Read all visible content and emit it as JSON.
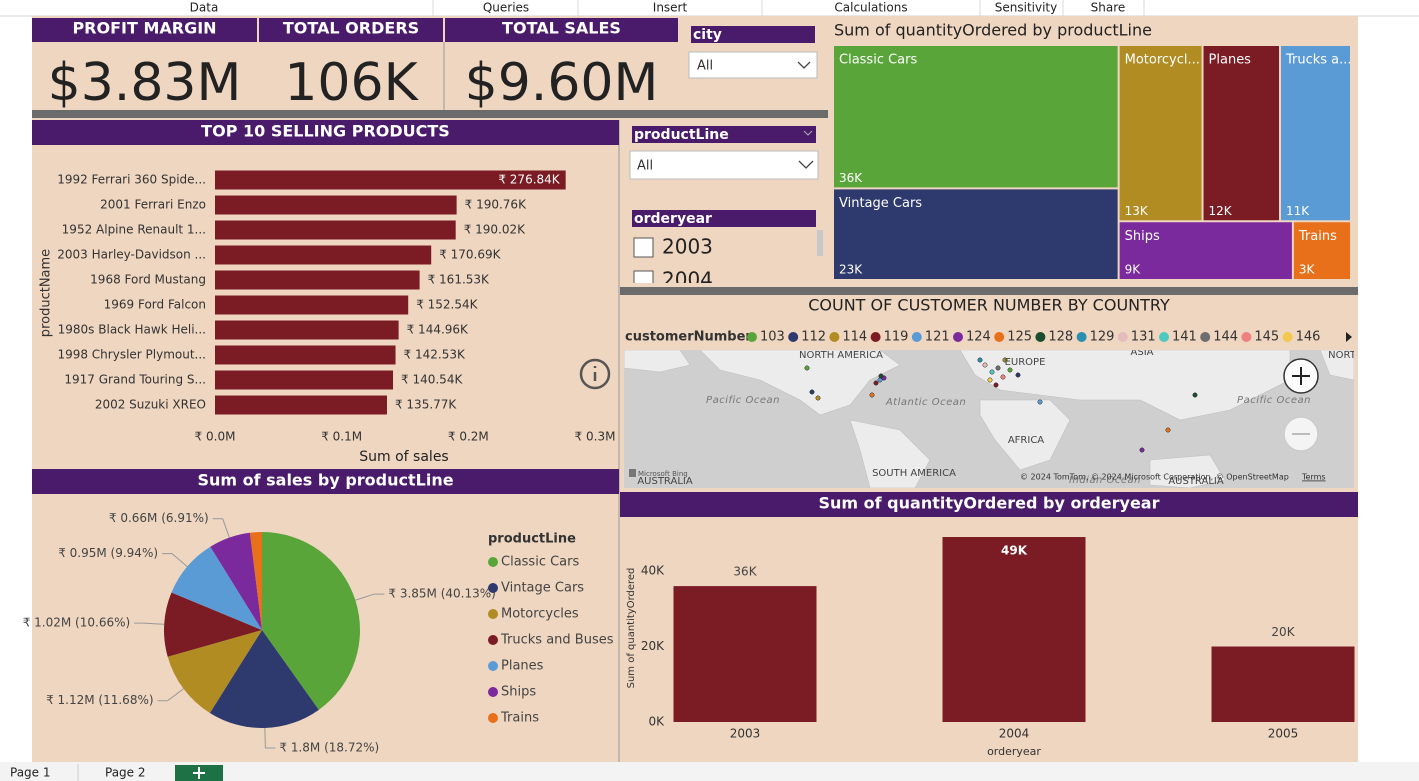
{
  "menu": [
    "Data",
    "Queries",
    "Insert",
    "Calculations",
    "Sensitivity",
    "Share"
  ],
  "kpis": [
    {
      "title": "PROFIT MARGIN",
      "value": "$3.83M"
    },
    {
      "title": "TOTAL ORDERS",
      "value": "106K"
    },
    {
      "title": "TOTAL SALES",
      "value": "$9.60M"
    }
  ],
  "slicers": {
    "city": {
      "title": "city",
      "selection": "All"
    },
    "productLine": {
      "title": "productLine",
      "selection": "All"
    },
    "orderyear": {
      "title": "orderyear",
      "options": [
        "2003",
        "2004"
      ]
    }
  },
  "map": {
    "title": "COUNT OF CUSTOMER NUMBER BY COUNTRY",
    "legend_title": "customerNumber",
    "legend": [
      {
        "name": "103",
        "color": "#5aa53a"
      },
      {
        "name": "112",
        "color": "#2e3a6e"
      },
      {
        "name": "114",
        "color": "#b08c22"
      },
      {
        "name": "119",
        "color": "#7b1c24"
      },
      {
        "name": "121",
        "color": "#5b9bd5"
      },
      {
        "name": "124",
        "color": "#7b2a9e"
      },
      {
        "name": "125",
        "color": "#e8701a"
      },
      {
        "name": "128",
        "color": "#1b4d2e"
      },
      {
        "name": "129",
        "color": "#2a8fb0"
      },
      {
        "name": "131",
        "color": "#e3bcbc"
      },
      {
        "name": "141",
        "color": "#4fc9c0"
      },
      {
        "name": "144",
        "color": "#6e6e6e"
      },
      {
        "name": "145",
        "color": "#f08080"
      },
      {
        "name": "146",
        "color": "#f2c94c"
      }
    ],
    "labels": [
      "NORTH AMERICA",
      "EUROPE",
      "ASIA",
      "NORT",
      "Pacific Ocean",
      "Atlantic Ocean",
      "AFRICA",
      "Pacific Ocean",
      "SOUTH AMERICA",
      "Indian Ocean",
      "AUSTRALIA",
      "AUSTRALIA"
    ],
    "provider": "Microsoft Bing",
    "attribution": "© 2024 TomTom, © 2024 Microsoft Corporation, © OpenStreetMap",
    "terms": "Terms"
  },
  "pages": [
    "Page 1",
    "Page 2"
  ],
  "chart_data": [
    {
      "type": "bar",
      "orientation": "horizontal",
      "title": "TOP 10 SELLING PRODUCTS",
      "x_label": "Sum of sales",
      "y_label": "productName",
      "categories": [
        "1992 Ferrari 360 Spide...",
        "2001 Ferrari Enzo",
        "1952 Alpine Renault 1...",
        "2003 Harley-Davidson ...",
        "1968 Ford Mustang",
        "1969 Ford Falcon",
        "1980s Black Hawk Heli...",
        "1998 Chrysler Plymout...",
        "1917 Grand Touring S...",
        "2002 Suzuki XREO"
      ],
      "values": [
        276840,
        190760,
        190020,
        170690,
        161530,
        152540,
        144960,
        142530,
        140540,
        135770
      ],
      "value_labels": [
        "₹ 276.84K",
        "₹ 190.76K",
        "₹ 190.02K",
        "₹ 170.69K",
        "₹ 161.53K",
        "₹ 152.54K",
        "₹ 144.96K",
        "₹ 142.53K",
        "₹ 140.54K",
        "₹ 135.77K"
      ],
      "color": "#7b1c24",
      "xlim": [
        0,
        300000
      ],
      "xticks": [
        {
          "value": 0,
          "label": "₹ 0.0M"
        },
        {
          "value": 100000,
          "label": "₹ 0.1M"
        },
        {
          "value": 200000,
          "label": "₹ 0.2M"
        },
        {
          "value": 300000,
          "label": "₹ 0.3M"
        }
      ]
    },
    {
      "type": "treemap",
      "title": "Sum of quantityOrdered by productLine",
      "categories": [
        "Classic Cars",
        "Vintage Cars",
        "Motorcycl...",
        "Planes",
        "Trucks a...",
        "Ships",
        "Trains"
      ],
      "values": [
        36000,
        23000,
        13000,
        12000,
        11000,
        9000,
        3000
      ],
      "value_labels": [
        "36K",
        "23K",
        "13K",
        "12K",
        "11K",
        "9K",
        "3K"
      ],
      "colors": [
        "#5aa53a",
        "#2e3a6e",
        "#b08c22",
        "#7b1c24",
        "#5b9bd5",
        "#7b2a9e",
        "#e8701a"
      ]
    },
    {
      "type": "pie",
      "title": "Sum of sales by productLine",
      "legend_title": "productLine",
      "categories": [
        "Classic Cars",
        "Vintage Cars",
        "Motorcycles",
        "Trucks and Buses",
        "Planes",
        "Ships",
        "Trains"
      ],
      "values": [
        3850000,
        1800000,
        1120000,
        1020000,
        950000,
        660000,
        188000
      ],
      "value_labels": [
        "₹ 3.85M (40.13%)",
        "₹ 1.8M (18.72%)",
        "₹ 1.12M (11.68%)",
        "₹ 1.02M (10.66%)",
        "₹ 0.95M (9.94%)",
        "₹ 0.66M (6.91%)",
        null
      ],
      "colors": [
        "#5aa53a",
        "#2e3a6e",
        "#b08c22",
        "#7b1c24",
        "#5b9bd5",
        "#7b2a9e",
        "#e8701a"
      ]
    },
    {
      "type": "bar",
      "orientation": "vertical",
      "title": "Sum of quantityOrdered by orderyear",
      "x_label": "orderyear",
      "y_label": "Sum of quantityOrdered",
      "categories": [
        "2003",
        "2004",
        "2005"
      ],
      "values": [
        36000,
        49000,
        20000
      ],
      "value_labels": [
        "36K",
        "49K",
        "20K"
      ],
      "color": "#7b1c24",
      "ylim": [
        0,
        50000
      ],
      "yticks": [
        {
          "value": 0,
          "label": "0K"
        },
        {
          "value": 20000,
          "label": "20K"
        },
        {
          "value": 40000,
          "label": "40K"
        }
      ]
    }
  ]
}
